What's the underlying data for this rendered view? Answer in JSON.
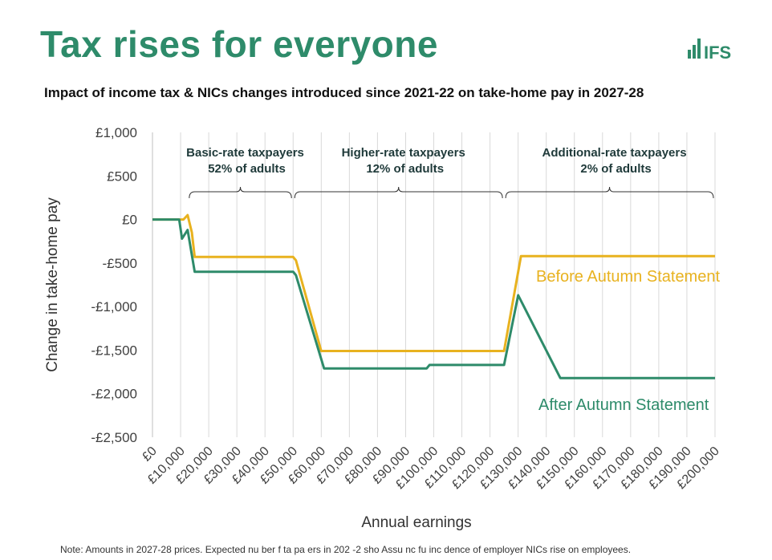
{
  "title": "Tax rises for everyone",
  "logo_text": "IFS",
  "colors": {
    "brand": "#2e8b6a",
    "before": "#e8b21f",
    "after": "#2e8b6a",
    "grid": "#d9d9d9",
    "text": "#404040"
  },
  "chart_data": {
    "type": "line",
    "title": "Impact of income tax & NICs changes introduced since 2021-22 on take-home pay in 2027-28",
    "xlabel": "Annual earnings",
    "ylabel": "Change in take-home pay",
    "xlim": [
      0,
      200000
    ],
    "ylim": [
      -2500,
      1000
    ],
    "x_ticks": [
      0,
      10000,
      20000,
      30000,
      40000,
      50000,
      60000,
      70000,
      80000,
      90000,
      100000,
      110000,
      120000,
      130000,
      140000,
      150000,
      160000,
      170000,
      180000,
      190000,
      200000
    ],
    "x_tick_labels": [
      "£0",
      "£10,000",
      "£20,000",
      "£30,000",
      "£40,000",
      "£50,000",
      "£60,000",
      "£70,000",
      "£80,000",
      "£90,000",
      "£100,000",
      "£110,000",
      "£120,000",
      "£130,000",
      "£140,000",
      "£150,000",
      "£160,000",
      "£170,000",
      "£180,000",
      "£190,000",
      "£200,000"
    ],
    "y_ticks": [
      1000,
      500,
      0,
      -500,
      -1000,
      -1500,
      -2000,
      -2500
    ],
    "y_tick_labels": [
      "£1,000",
      "£500",
      "£0",
      "-£500",
      "-£1,000",
      "-£1,500",
      "-£2,000",
      "-£2,500"
    ],
    "grid": "vertical",
    "series": [
      {
        "name": "Before Autumn Statement",
        "color": "#e8b21f",
        "points": [
          [
            0,
            0
          ],
          [
            8500,
            0
          ],
          [
            11000,
            0
          ],
          [
            12500,
            50
          ],
          [
            14000,
            -150
          ],
          [
            15000,
            -430
          ],
          [
            50000,
            -430
          ],
          [
            51000,
            -470
          ],
          [
            60000,
            -1510
          ],
          [
            125000,
            -1510
          ],
          [
            131000,
            -420
          ],
          [
            200000,
            -420
          ]
        ]
      },
      {
        "name": "After Autumn Statement",
        "color": "#2e8b6a",
        "points": [
          [
            0,
            0
          ],
          [
            9500,
            0
          ],
          [
            10500,
            -220
          ],
          [
            12500,
            -120
          ],
          [
            15000,
            -600
          ],
          [
            50000,
            -600
          ],
          [
            51000,
            -640
          ],
          [
            61000,
            -1710
          ],
          [
            97500,
            -1710
          ],
          [
            98500,
            -1670
          ],
          [
            125000,
            -1670
          ],
          [
            130000,
            -870
          ],
          [
            145000,
            -1820
          ],
          [
            200000,
            -1820
          ]
        ]
      }
    ],
    "annotations": [
      {
        "text": "Before Autumn Statement",
        "series": 0
      },
      {
        "text": "After Autumn Statement",
        "series": 1
      }
    ],
    "brackets": [
      {
        "line1": "Basic-rate taxpayers",
        "line2": "52% of adults",
        "from": 12500,
        "to": 50000
      },
      {
        "line1": "Higher-rate taxpayers",
        "line2": "12% of adults",
        "from": 50000,
        "to": 125000
      },
      {
        "line1": "Additional-rate taxpayers",
        "line2": "2% of adults",
        "from": 125000,
        "to": 200000
      }
    ]
  },
  "footer_note": "Note: Amounts in 2027-28 prices. Expected nu ber f ta pa ers in 202 -2 sho Assu nc fu inc dence of employer NICs rise on employees."
}
